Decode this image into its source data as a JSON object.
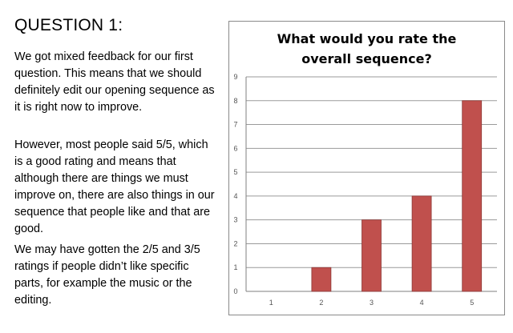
{
  "heading": "QUESTION 1:",
  "paragraphs": [
    "We got mixed feedback for our first question. This means that we should definitely edit our opening sequence as it is right now to improve.",
    "However, most people said 5/5, which is a good rating and means that although there are things we must improve on, there are also things in our sequence that people like and that are good.",
    "We may have gotten the 2/5 and 3/5 ratings if people didn’t like specific parts, for example the music or the editing."
  ],
  "colors": {
    "bar": "#c0504d",
    "bar_border": "#8c3836",
    "grid": "#9a9a9a",
    "axis": "#7f7f7f"
  },
  "chart_data": {
    "type": "bar",
    "title": "What would you rate the overall sequence?",
    "categories": [
      "1",
      "2",
      "3",
      "4",
      "5"
    ],
    "values": [
      0,
      1,
      3,
      4,
      8
    ],
    "xlabel": "",
    "ylabel": "",
    "ylim": [
      0,
      9
    ],
    "yticks": [
      "0",
      "1",
      "2",
      "3",
      "4",
      "5",
      "6",
      "7",
      "8",
      "9"
    ],
    "grid": true,
    "legend": false
  }
}
